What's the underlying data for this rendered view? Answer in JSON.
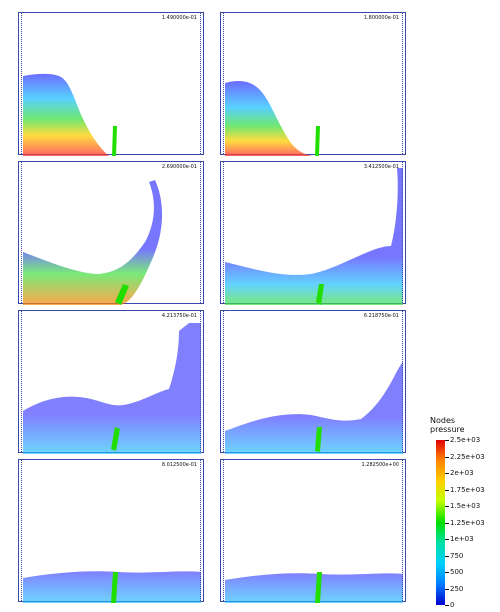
{
  "panels": [
    {
      "time": "1.490000e-01"
    },
    {
      "time": "1.800000e-01"
    },
    {
      "time": "2.690000e-01"
    },
    {
      "time": "3.412500e-01"
    },
    {
      "time": "4.213750e-01"
    },
    {
      "time": "6.218750e-01"
    },
    {
      "time": "8.012500e-01"
    },
    {
      "time": "1.282500e+00"
    }
  ],
  "legend": {
    "title": "Nodes\npressure",
    "ticks": [
      "2.5e+03",
      "2.25e+03",
      "2e+03",
      "1.75e+03",
      "1.5e+03",
      "1.25e+03",
      "1e+03",
      "750",
      "500",
      "250",
      "0"
    ]
  },
  "colors": {
    "frame": "#3949ab",
    "gate": "#22dd00"
  }
}
